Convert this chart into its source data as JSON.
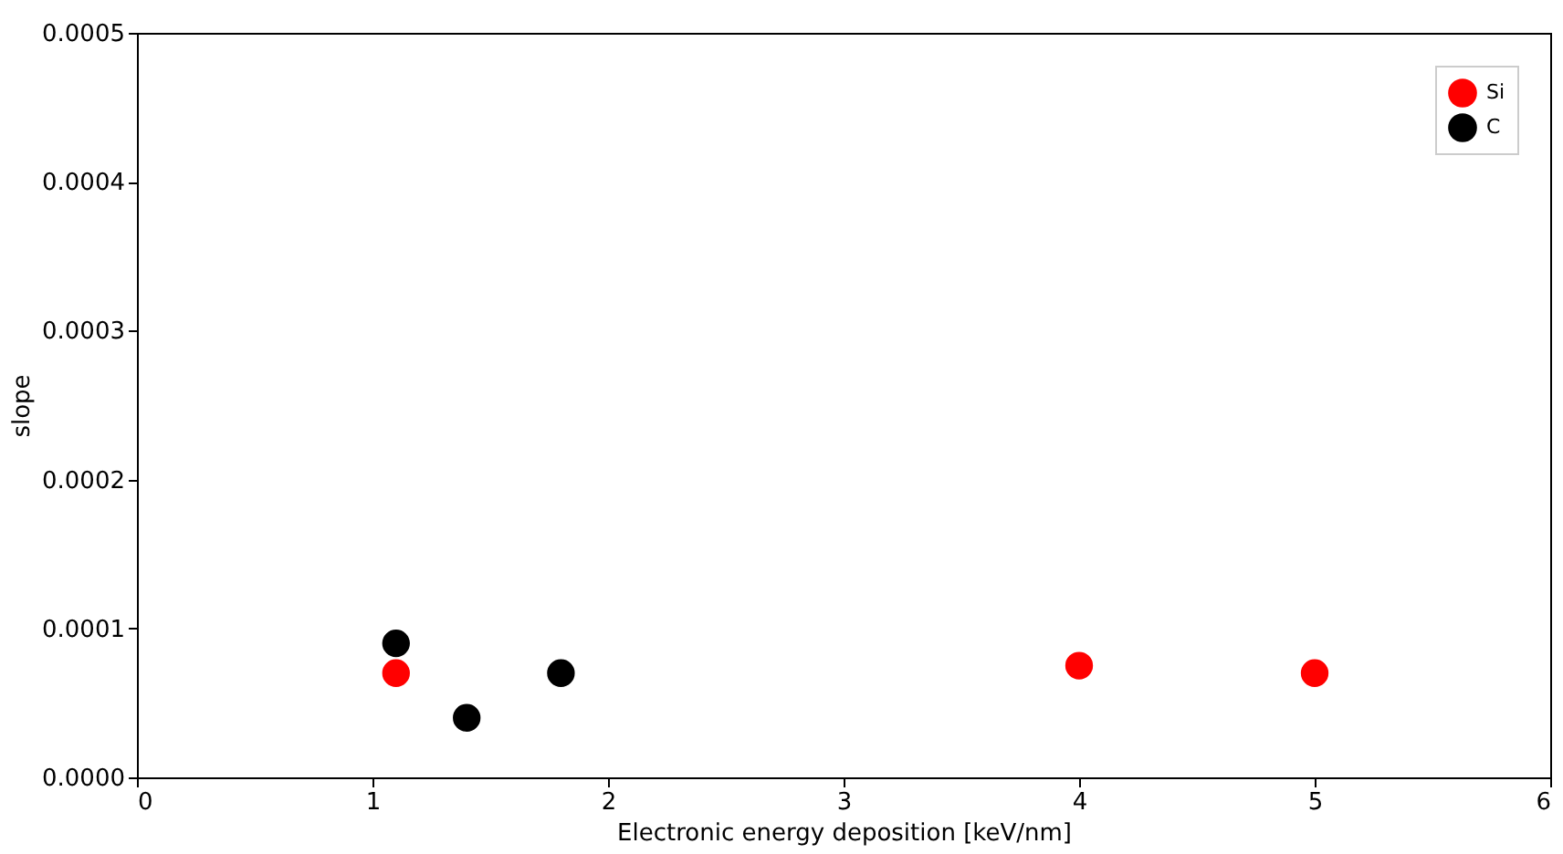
{
  "chart_data": {
    "type": "scatter",
    "xlabel": "Electronic energy deposition [keV/nm]",
    "ylabel": "slope",
    "xlim": [
      0,
      6
    ],
    "xticks": [
      0,
      1,
      2,
      3,
      4,
      5,
      6
    ],
    "ylim": [
      0,
      0.0005
    ],
    "yticks": [
      {
        "value": 0,
        "label": "0.0000"
      },
      {
        "value": 0.0001,
        "label": "0.0001"
      },
      {
        "value": 0.0002,
        "label": "0.0002"
      },
      {
        "value": 0.0003,
        "label": "0.0003"
      },
      {
        "value": 0.0004,
        "label": "0.0004"
      },
      {
        "value": 0.0005,
        "label": "0.0005"
      }
    ],
    "series": [
      {
        "name": "Si",
        "color": "#ff0000",
        "x": [
          1.1,
          4.0,
          5.0
        ],
        "values": [
          7e-05,
          7.5e-05,
          7e-05
        ]
      },
      {
        "name": "C",
        "color": "#000000",
        "x": [
          1.1,
          1.4,
          1.8
        ],
        "values": [
          9e-05,
          4e-05,
          7e-05
        ]
      }
    ],
    "marker": "circle",
    "grid": false,
    "legend": "top right"
  }
}
